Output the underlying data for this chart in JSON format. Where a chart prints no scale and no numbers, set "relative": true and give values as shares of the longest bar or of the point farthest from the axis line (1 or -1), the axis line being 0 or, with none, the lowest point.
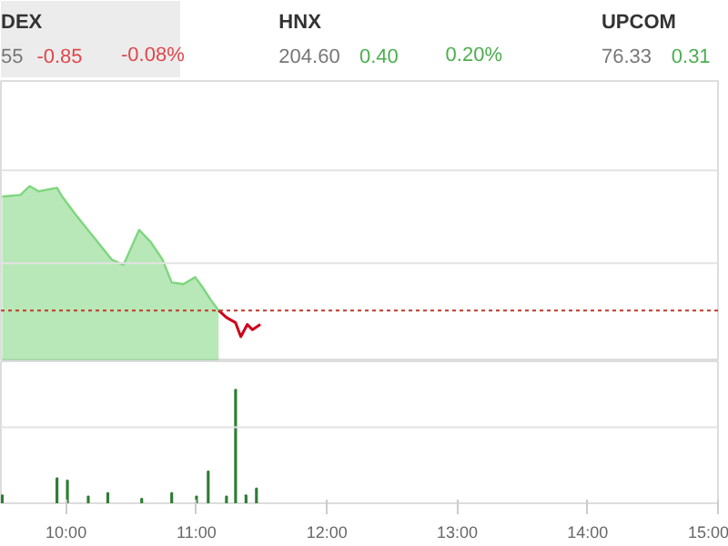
{
  "chart_data": [
    {
      "type": "other",
      "annotations": [
        "DEX",
        "55",
        "-0.85",
        "-0.08%",
        "HNX",
        "204.60",
        "0.40",
        "0.20%",
        "UPCOM",
        "76.33",
        "0.31"
      ],
      "colors": [
        "#333333",
        "#777777",
        "#e0474c",
        "#e0474c",
        "#333333",
        "#777777",
        "#4caf50",
        "#4caf50",
        "#333333",
        "#777777",
        "#4caf50"
      ]
    },
    {
      "type": "area",
      "relative": true,
      "xlim": [
        9.5,
        15.0
      ],
      "series": [
        {
          "type": "area",
          "color": "#7ed67e",
          "x": [
            9.51,
            9.65,
            9.72,
            9.79,
            9.93,
            9.97,
            10.07,
            10.21,
            10.35,
            10.44,
            10.56,
            10.65,
            10.74,
            10.81,
            10.9,
            10.99,
            11.04,
            11.11,
            11.17
          ],
          "values": [
            0.94,
            0.95,
            1.0,
            0.97,
            0.99,
            0.94,
            0.84,
            0.71,
            0.58,
            0.55,
            0.75,
            0.68,
            0.58,
            0.45,
            0.44,
            0.48,
            0.43,
            0.35,
            0.29
          ]
        },
        {
          "type": "line",
          "color": "#d0021b",
          "x": [
            11.17,
            11.23,
            11.3,
            11.34,
            11.39,
            11.43,
            11.49
          ],
          "values": [
            0.29,
            0.25,
            0.22,
            0.14,
            0.21,
            0.18,
            0.21
          ]
        }
      ],
      "ref_lines": [
        {
          "axis": "y",
          "value": 0.29,
          "color": "#c0392b",
          "line_style": "dotted"
        },
        {
          "axis": "y",
          "value": 0.56,
          "color": "#e3e3e3",
          "line_style": "solid"
        },
        {
          "axis": "y",
          "value": 1.09,
          "color": "#e3e3e3",
          "line_style": "solid"
        }
      ]
    },
    {
      "type": "bar",
      "relative": true,
      "xlim": [
        9.5,
        15.0
      ],
      "ref_lines": [
        {
          "axis": "y",
          "value": 0.67,
          "color": "#e3e3e3",
          "line_style": "solid"
        }
      ],
      "xticks": [
        {
          "value": 10,
          "label": "10:00"
        },
        {
          "value": 11,
          "label": "11:00"
        },
        {
          "value": 12,
          "label": "12:00"
        },
        {
          "value": 13,
          "label": "13:00"
        },
        {
          "value": 14,
          "label": "14:00"
        },
        {
          "value": 15,
          "label": "15:00"
        }
      ],
      "x": [
        9.51,
        9.93,
        10.01,
        10.17,
        10.32,
        10.58,
        10.81,
        11.0,
        11.09,
        11.23,
        11.3,
        11.38,
        11.46
      ],
      "values": [
        0.07,
        0.22,
        0.2,
        0.06,
        0.09,
        0.04,
        0.09,
        0.06,
        0.28,
        0.06,
        1.0,
        0.07,
        0.13
      ],
      "color": "#2e7d32"
    }
  ]
}
